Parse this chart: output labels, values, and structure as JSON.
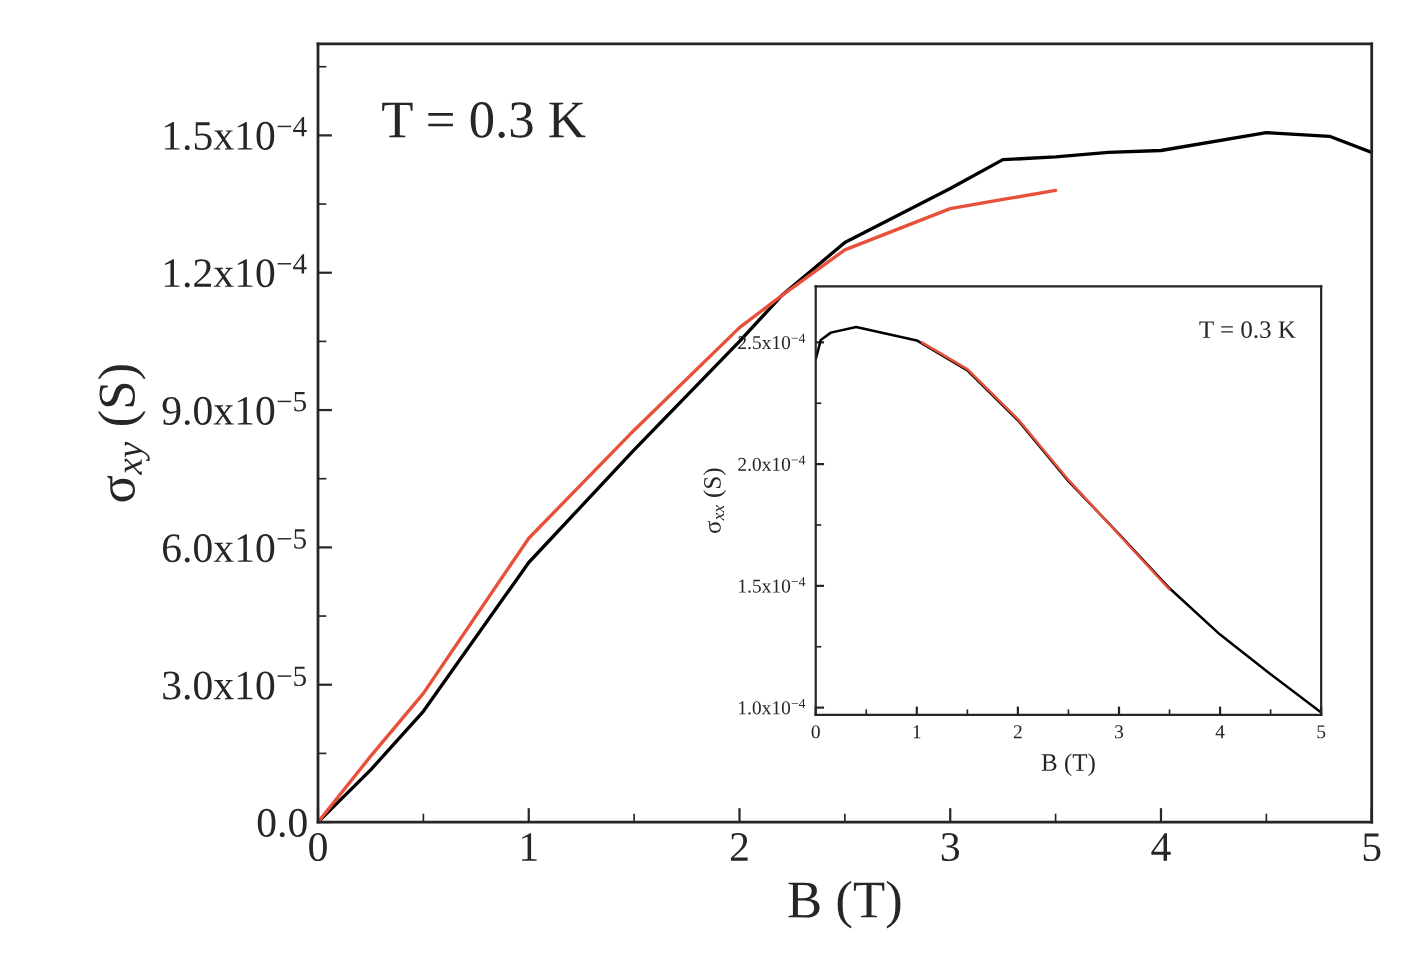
{
  "chart_data": [
    {
      "type": "line",
      "xlabel": "B (T)",
      "ylabel": "σ$_{xy}$ (S)",
      "annotations": [
        "T = 0.3 K"
      ],
      "xlim": [
        0,
        5
      ],
      "xticks": [
        0,
        {
          "value": 0.5,
          "label": null
        },
        1,
        {
          "value": 1.5,
          "label": null
        },
        2,
        {
          "value": 2.5,
          "label": null
        },
        3,
        {
          "value": 3.5,
          "label": null
        },
        4,
        {
          "value": 4.5,
          "label": null
        },
        5
      ],
      "ylim": [
        0,
        0.00017
      ],
      "yticks": [
        {
          "value": 0,
          "label": "0.0"
        },
        {
          "value": 1.5e-05,
          "label": null
        },
        {
          "value": 3e-05,
          "label": "3.0x10$^{−5}$"
        },
        {
          "value": 4.5e-05,
          "label": null
        },
        {
          "value": 6e-05,
          "label": "6.0x10$^{−5}$"
        },
        {
          "value": 7.5e-05,
          "label": null
        },
        {
          "value": 9e-05,
          "label": "9.0x10$^{−5}$"
        },
        {
          "value": 0.000105,
          "label": null
        },
        {
          "value": 0.00012,
          "label": "1.2x10$^{−4}$"
        },
        {
          "value": 0.000135,
          "label": null
        },
        {
          "value": 0.00015,
          "label": "1.5x10$^{−4}$"
        },
        {
          "value": 0.000165,
          "label": null
        }
      ],
      "grid": false,
      "legend": false,
      "line_style": "solid",
      "marker": "none",
      "series": [
        {
          "color": "#000000",
          "x": [
            0,
            0.25,
            0.5,
            1,
            1.5,
            2,
            2.2,
            2.5,
            3,
            3.25,
            3.5,
            3.75,
            4,
            4.5,
            4.8,
            5
          ],
          "values": [
            0,
            1.14e-05,
            2.42e-05,
            5.67e-05,
            8.13e-05,
            0.000105,
            0.000115,
            0.0001266,
            0.0001384,
            0.0001447,
            0.0001453,
            0.0001463,
            0.0001467,
            0.0001506,
            0.0001498,
            0.0001463
          ]
        },
        {
          "color": "#e8503a",
          "x": [
            0,
            0.25,
            0.5,
            1,
            1.5,
            2,
            2.2,
            2.5,
            3,
            3.25,
            3.5
          ],
          "values": [
            0,
            1.44e-05,
            2.81e-05,
            6.2e-05,
            8.56e-05,
            0.000108,
            0.000115,
            0.000125,
            0.000134,
            0.000136,
            0.000138
          ]
        }
      ]
    },
    {
      "type": "line",
      "xlabel": "B (T)",
      "ylabel": "σ$_{xx}$ (S)",
      "annotations": [
        "T = 0.3 K"
      ],
      "xlim": [
        0,
        5
      ],
      "xticks": [
        0,
        {
          "value": 0.5,
          "label": null
        },
        1,
        {
          "value": 1.5,
          "label": null
        },
        2,
        {
          "value": 2.5,
          "label": null
        },
        3,
        {
          "value": 3.5,
          "label": null
        },
        4,
        {
          "value": 4.5,
          "label": null
        },
        5
      ],
      "ylim": [
        9.7e-05,
        0.000273
      ],
      "yticks": [
        {
          "value": 0.0001,
          "label": "1.0x10$^{−4}$"
        },
        {
          "value": 0.000125,
          "label": null
        },
        {
          "value": 0.00015,
          "label": "1.5x10$^{−4}$"
        },
        {
          "value": 0.000175,
          "label": null
        },
        {
          "value": 0.0002,
          "label": "2.0x10$^{−4}$"
        },
        {
          "value": 0.000225,
          "label": null
        },
        {
          "value": 0.00025,
          "label": "2.5x10$^{−4}$"
        }
      ],
      "grid": false,
      "legend": false,
      "line_style": "solid",
      "marker": "none",
      "series": [
        {
          "color": "#000000",
          "x": [
            0,
            0.05,
            0.15,
            0.4,
            1,
            1.5,
            2,
            2.5,
            3,
            3.5,
            4,
            4.5,
            5
          ],
          "values": [
            0.000243,
            0.000251,
            0.000254,
            0.0002563,
            0.0002508,
            0.0002385,
            0.000218,
            0.000193,
            0.0001713,
            0.000149,
            0.00013,
            0.0001137,
            9.8e-05
          ]
        },
        {
          "color": "#e8503a",
          "x": [
            1.05,
            1.5,
            2,
            2.5,
            3,
            3.5
          ],
          "values": [
            0.00025,
            0.000239,
            0.0002185,
            0.0001935,
            0.000171,
            0.0001485
          ]
        }
      ]
    }
  ]
}
